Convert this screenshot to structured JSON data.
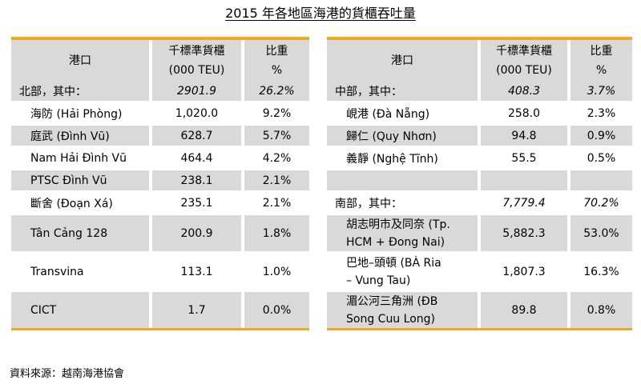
{
  "title": "2015 年各地區海港的貨櫃吞吐量",
  "left_table": {
    "headers": {
      "port": "港口",
      "volume_line1": "千標準貨櫃",
      "volume_line2": "(000 TEU)",
      "share_line1": "比重",
      "share_line2": "%"
    },
    "region": {
      "name": "北部，其中：",
      "volume": "2901.9",
      "share": "26.2%"
    },
    "rows": [
      {
        "name": "海防 (Hải Phòng)",
        "volume": "1,020.0",
        "share": "9.2%"
      },
      {
        "name": "庭武 (Đình Vũ)",
        "volume": "628.7",
        "share": "5.7%"
      },
      {
        "name": "Nam Hải Đình Vũ",
        "volume": "464.4",
        "share": "4.2%"
      },
      {
        "name": "PTSC Đình Vũ",
        "volume": "238.1",
        "share": "2.1%"
      },
      {
        "name": "斷舍 (Đoạn Xá)",
        "volume": "235.1",
        "share": "2.1%"
      },
      {
        "name": "Tân Cảng 128",
        "volume": "200.9",
        "share": "1.8%"
      },
      {
        "name": "Transvina",
        "volume": "113.1",
        "share": "1.0%"
      },
      {
        "name": "CICT",
        "volume": "1.7",
        "share": "0.0%"
      }
    ]
  },
  "right_table": {
    "headers": {
      "port": "港口",
      "volume_line1": "千標準貨櫃",
      "volume_line2": "(000 TEU)",
      "share_line1": "比重",
      "share_line2": "%"
    },
    "central": {
      "name": "中部，其中：",
      "volume": "408.3",
      "share": "3.7%"
    },
    "central_rows": [
      {
        "name": "峴港 (Đà Nẵng)",
        "volume": "258.0",
        "share": "2.3%"
      },
      {
        "name": "歸仁 (Quy Nhơn)",
        "volume": "94.8",
        "share": "0.9%"
      },
      {
        "name": "義靜 (Nghệ Tĩnh)",
        "volume": "55.5",
        "share": "0.5%"
      }
    ],
    "south": {
      "name": "南部，其中：",
      "volume": "7,779.4",
      "share": "70.2%"
    },
    "south_rows": [
      {
        "line1": "胡志明市及同奈 (Tp.",
        "line2": "HCM + Đong Nai)",
        "volume": "5,882.3",
        "share": "53.0%"
      },
      {
        "line1": "巴地–頭頓 (BÀ Ria",
        "line2": "– Vung Tau)",
        "volume": "1,807.3",
        "share": "16.3%"
      },
      {
        "line1": "湄公河三角洲 (ĐB",
        "line2": "Song Cuu Long)",
        "volume": "89.8",
        "share": "0.8%"
      }
    ]
  },
  "source": "資料來源：越南海港協會"
}
